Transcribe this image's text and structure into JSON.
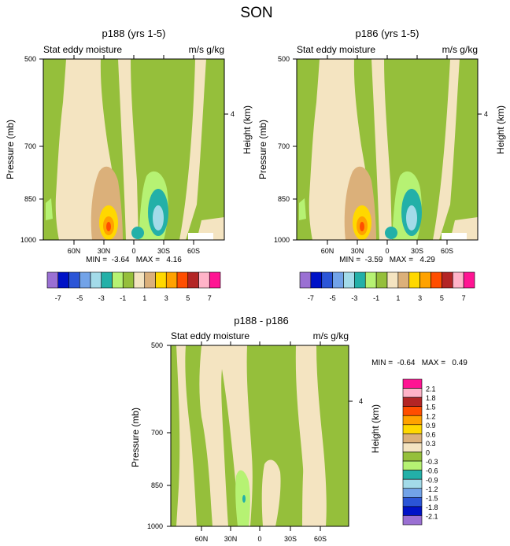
{
  "figure": {
    "season": "SON"
  },
  "chart_data": [
    {
      "type": "heatmap",
      "title": "p188 (yrs 1-5)",
      "subtitle_left": "Stat eddy moisture",
      "subtitle_right": "m/s g/kg",
      "ylabel": "Pressure (mb)",
      "ylabel_right": "Height (km)",
      "y_ticks": [
        "500",
        "700",
        "850",
        "1000"
      ],
      "y_right_ticks": [
        "4"
      ],
      "x_ticks": [
        "60N",
        "30N",
        "0",
        "30S",
        "60S"
      ],
      "min_label": "MIN =  -3.64   MAX =   4.16",
      "min": -3.64,
      "max": 4.16,
      "colorbar_labels": [
        "-7",
        "-5",
        "-3",
        "-1",
        "1",
        "3",
        "5",
        "7"
      ]
    },
    {
      "type": "heatmap",
      "title": "p186 (yrs 1-5)",
      "subtitle_left": "Stat eddy moisture",
      "subtitle_right": "m/s g/kg",
      "ylabel": "Pressure (mb)",
      "ylabel_right": "Height (km)",
      "y_ticks": [
        "500",
        "700",
        "850",
        "1000"
      ],
      "y_right_ticks": [
        "4"
      ],
      "x_ticks": [
        "60N",
        "30N",
        "0",
        "30S",
        "60S"
      ],
      "min_label": "MIN =  -3.59   MAX =   4.29",
      "min": -3.59,
      "max": 4.29,
      "colorbar_labels": [
        "-7",
        "-5",
        "-3",
        "-1",
        "1",
        "3",
        "5",
        "7"
      ]
    },
    {
      "type": "heatmap",
      "title": "p188 - p186",
      "subtitle_left": "Stat eddy moisture",
      "subtitle_right": "m/s g/kg",
      "ylabel": "Pressure (mb)",
      "ylabel_right": "Height (km)",
      "y_ticks": [
        "500",
        "700",
        "850",
        "1000"
      ],
      "y_right_ticks": [
        "4"
      ],
      "x_ticks": [
        "60N",
        "30N",
        "0",
        "30S",
        "60S"
      ],
      "min_label": "MIN =  -0.64   MAX =   0.49",
      "min": -0.64,
      "max": 0.49,
      "colorbar_labels": [
        "2.1",
        "1.8",
        "1.5",
        "1.2",
        "0.9",
        "0.6",
        "0.3",
        "0",
        "-0.3",
        "-0.6",
        "-0.9",
        "-1.2",
        "-1.5",
        "-1.8",
        "-2.1"
      ]
    }
  ],
  "palette": [
    "#9a70d3",
    "#0012c7",
    "#2b55d7",
    "#72a3e8",
    "#a3dbe9",
    "#23b0a8",
    "#b6f273",
    "#95bf3b",
    "#f4e4c1",
    "#dbb07a",
    "#ffd800",
    "#ffa200",
    "#ff4e00",
    "#b32525",
    "#ffb3c8",
    "#ff1493"
  ]
}
